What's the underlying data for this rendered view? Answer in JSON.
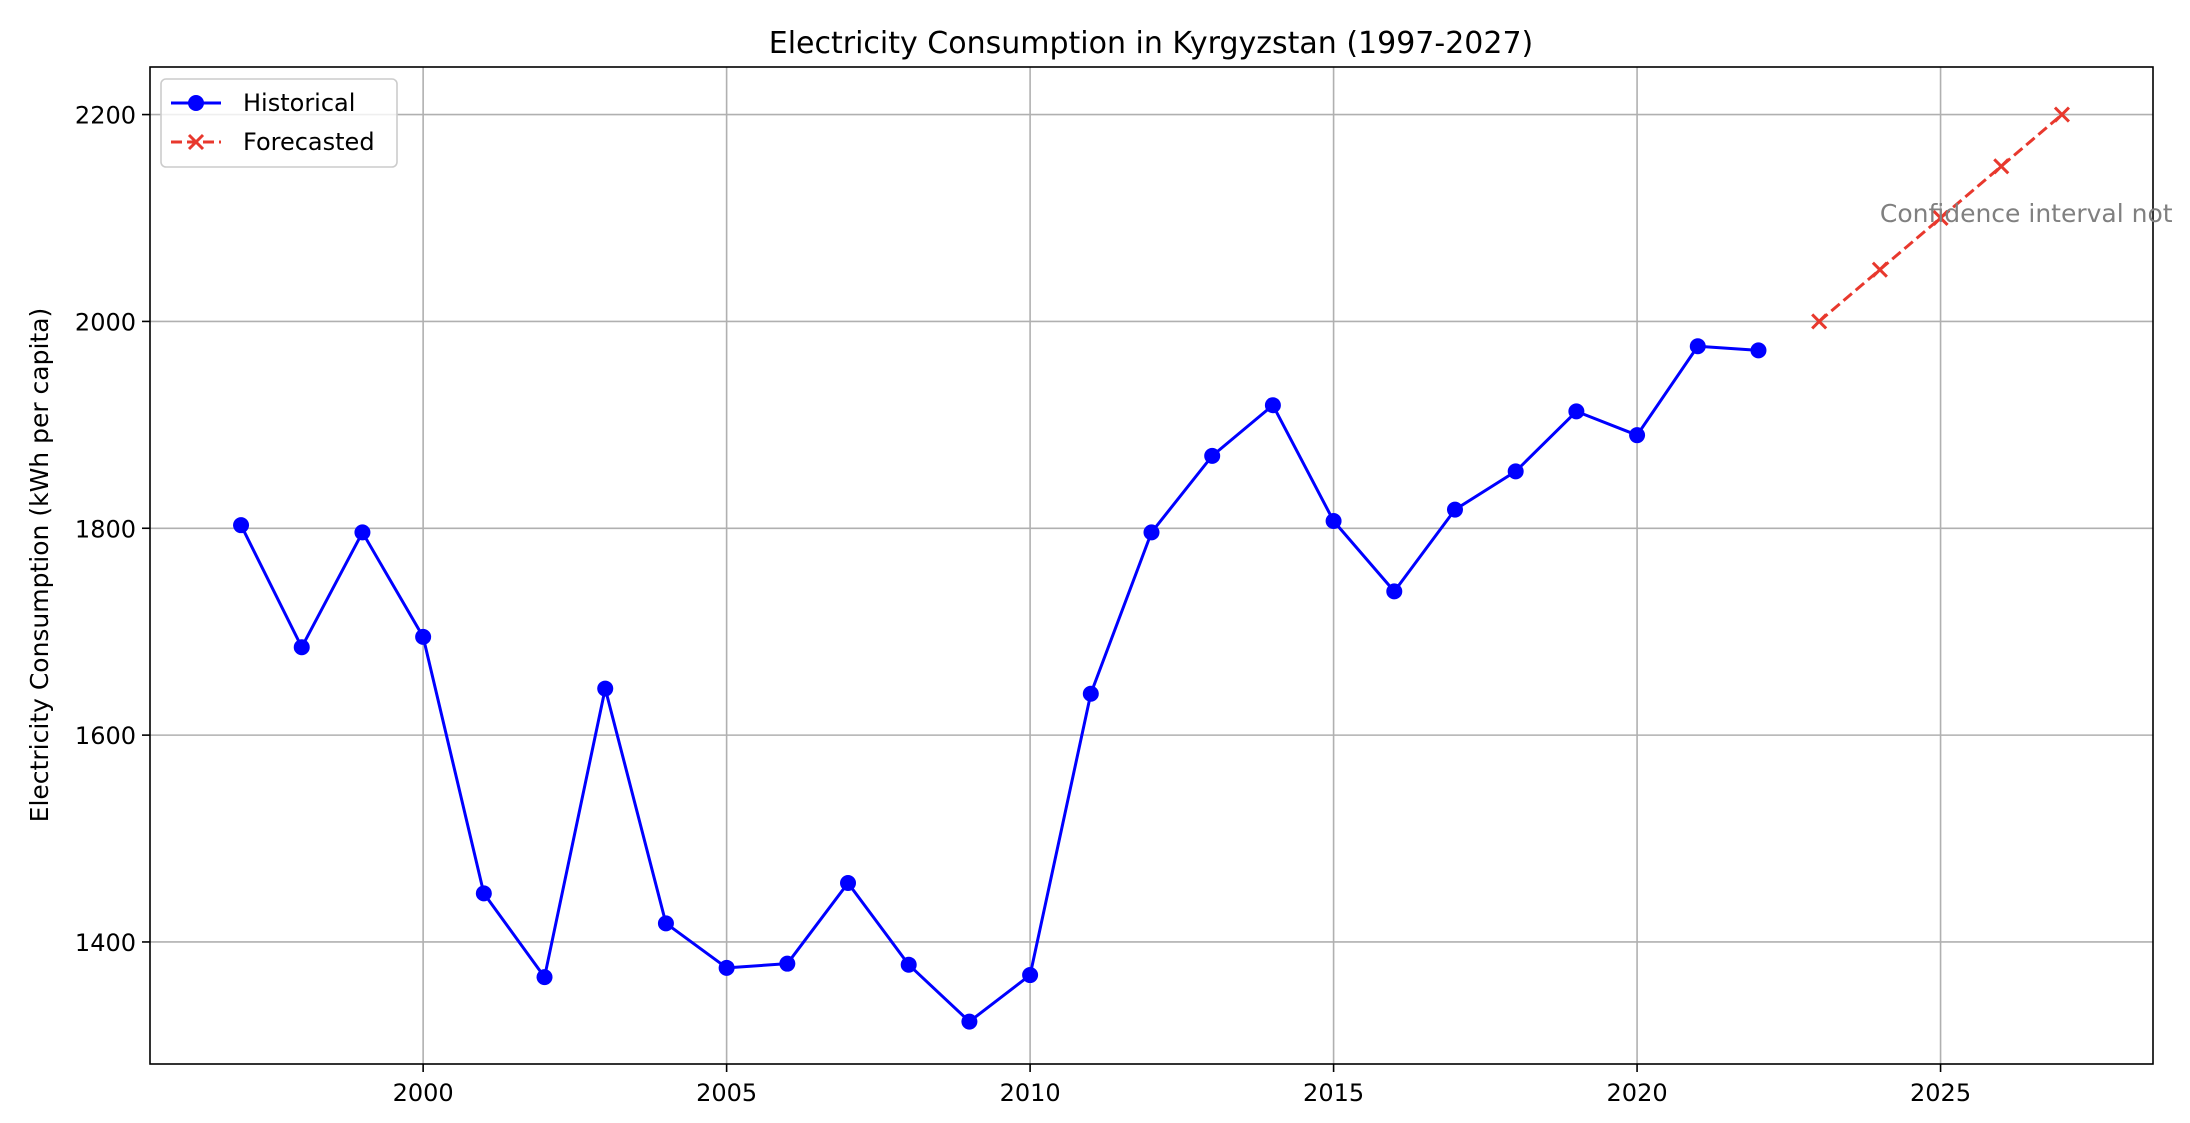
{
  "chart_data": {
    "type": "line",
    "title": "Electricity Consumption in Kyrgyzstan (1997-2027)",
    "xlabel": "",
    "ylabel": "Electricity Consumption (kWh per capita)",
    "xlim": [
      1995.5,
      2028.5
    ],
    "ylim": [
      1282,
      2246
    ],
    "xticks": [
      2000,
      2005,
      2010,
      2015,
      2020,
      2025
    ],
    "yticks": [
      1400,
      1600,
      1800,
      2000,
      2200
    ],
    "grid": true,
    "legend_position": "top-left",
    "series": [
      {
        "name": "Historical",
        "color": "#0000ff",
        "marker": "circle",
        "linestyle": "solid",
        "x": [
          1997,
          1998,
          1999,
          2000,
          2001,
          2002,
          2003,
          2004,
          2005,
          2006,
          2007,
          2008,
          2009,
          2010,
          2011,
          2012,
          2013,
          2014,
          2015,
          2016,
          2017,
          2018,
          2019,
          2020,
          2021,
          2022
        ],
        "y": [
          1803,
          1685,
          1796,
          1695,
          1447,
          1366,
          1645,
          1418,
          1375,
          1379,
          1457,
          1378,
          1323,
          1368,
          1640,
          1796,
          1870,
          1919,
          1807,
          1739,
          1818,
          1855,
          1913,
          1890,
          1976,
          1972
        ]
      },
      {
        "name": "Forecasted",
        "color": "#e8382d",
        "marker": "x",
        "linestyle": "dashed",
        "x": [
          2023,
          2024,
          2025,
          2026,
          2027
        ],
        "y": [
          2000,
          2050,
          2100,
          2150,
          2200
        ]
      }
    ],
    "annotations": [
      {
        "text": "Confidence interval not",
        "x": 2024.0,
        "y": 2105,
        "color": "#808080"
      }
    ]
  }
}
